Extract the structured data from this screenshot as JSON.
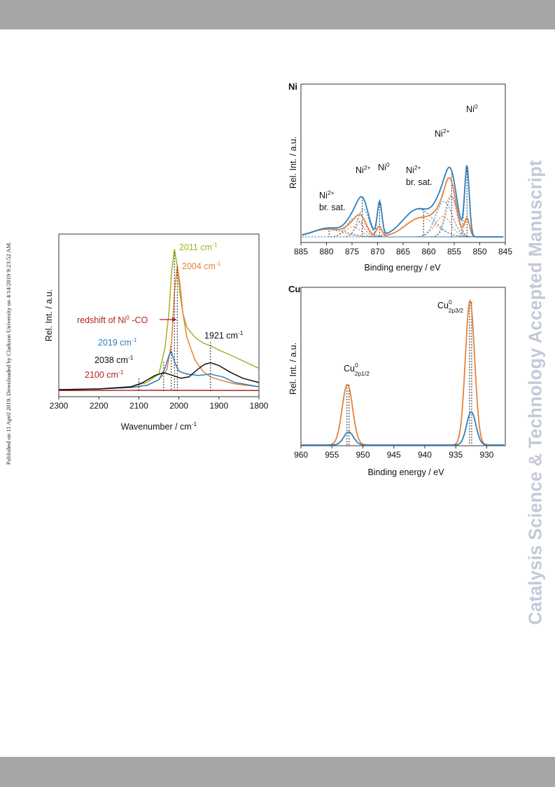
{
  "page": {
    "side_note": "Published on 11 April 2019. Downloaded by Clarkson University on 4/14/2019 9:23:52 AM.",
    "watermark": "Catalysis Science & Technology Accepted Manuscript"
  },
  "colors": {
    "blue": "#2e7fbf",
    "orange": "#e8803a",
    "olive": "#a6b21f",
    "black": "#111111",
    "red": "#b22222",
    "frame": "#333333"
  },
  "chart_data": [
    {
      "id": "ir",
      "type": "line",
      "xlabel": "Wavenumber / cm",
      "xlabel_sup": "-1",
      "ylabel": "Rel. Int. / a.u.",
      "xlim": [
        2300,
        1800
      ],
      "x_ticks": [
        2300,
        2200,
        2100,
        2000,
        1900,
        1800
      ],
      "grid": false,
      "series": [
        {
          "color": "olive",
          "x": [
            2300,
            2200,
            2120,
            2080,
            2050,
            2035,
            2025,
            2018,
            2011,
            2004,
            1998,
            1990,
            1980,
            1960,
            1940,
            1921,
            1900,
            1860,
            1800
          ],
          "y": [
            0.01,
            0.015,
            0.03,
            0.06,
            0.12,
            0.3,
            0.55,
            0.85,
            1.0,
            0.88,
            0.7,
            0.55,
            0.45,
            0.38,
            0.34,
            0.32,
            0.29,
            0.24,
            0.16
          ]
        },
        {
          "color": "orange",
          "x": [
            2300,
            2200,
            2120,
            2080,
            2050,
            2030,
            2018,
            2011,
            2004,
            1997,
            1990,
            1980,
            1960,
            1940,
            1921,
            1900,
            1860,
            1800
          ],
          "y": [
            0.01,
            0.015,
            0.025,
            0.04,
            0.08,
            0.15,
            0.35,
            0.7,
            0.88,
            0.75,
            0.55,
            0.38,
            0.22,
            0.14,
            0.1,
            0.08,
            0.05,
            0.03
          ]
        },
        {
          "color": "blue",
          "x": [
            2300,
            2200,
            2120,
            2080,
            2050,
            2035,
            2025,
            2019,
            2010,
            2000,
            1980,
            1950,
            1921,
            1890,
            1860,
            1800
          ],
          "y": [
            0.01,
            0.015,
            0.025,
            0.04,
            0.08,
            0.16,
            0.25,
            0.28,
            0.2,
            0.14,
            0.12,
            0.11,
            0.12,
            0.1,
            0.06,
            0.03
          ]
        },
        {
          "color": "black",
          "x": [
            2300,
            2200,
            2120,
            2090,
            2060,
            2038,
            2015,
            1995,
            1975,
            1950,
            1935,
            1921,
            1900,
            1870,
            1840,
            1800
          ],
          "y": [
            0.01,
            0.015,
            0.03,
            0.06,
            0.11,
            0.13,
            0.11,
            0.09,
            0.1,
            0.16,
            0.19,
            0.2,
            0.18,
            0.13,
            0.09,
            0.06
          ]
        },
        {
          "color": "red",
          "x": [
            2300,
            2110,
            2100,
            2090,
            1800
          ],
          "y": [
            0.004,
            0.005,
            0.007,
            0.005,
            0.004
          ]
        }
      ],
      "vlines": [
        2100,
        2038,
        2019,
        2011,
        2004,
        1921
      ],
      "labels": [
        {
          "text": "2011 cm",
          "sup": "-1",
          "color": "olive"
        },
        {
          "text": "2004 cm",
          "sup": "-1",
          "color": "orange"
        },
        {
          "text": "redshift of Ni",
          "sup": "0",
          "after": " -CO",
          "color": "red"
        },
        {
          "text": "1921 cm",
          "sup": "-1",
          "color": "black"
        },
        {
          "text": "2019 cm",
          "sup": "-1",
          "color": "blue"
        },
        {
          "text": "2038 cm",
          "sup": "-1",
          "color": "black"
        },
        {
          "text": "2100 cm",
          "sup": "-1",
          "color": "red"
        }
      ]
    },
    {
      "id": "ni",
      "type": "line",
      "title": "Ni",
      "xlabel": "Binding energy / eV",
      "ylabel": "Rel. Int. / a.u.",
      "xlim": [
        885,
        845
      ],
      "x_ticks": [
        885,
        880,
        875,
        870,
        865,
        860,
        855,
        850,
        845
      ],
      "grid": false,
      "blue_peaks": [
        [
          852.5,
          0.55,
          0.45
        ],
        [
          855.5,
          0.32,
          1.1
        ],
        [
          857.0,
          0.28,
          1.6
        ],
        [
          862.0,
          0.22,
          3.0
        ],
        [
          869.6,
          0.27,
          0.45
        ],
        [
          872.8,
          0.22,
          1.1
        ],
        [
          874.5,
          0.15,
          1.5
        ],
        [
          879.5,
          0.07,
          3.0
        ]
      ],
      "orange_peaks": [
        [
          852.5,
          0.14,
          0.5
        ],
        [
          855.7,
          0.33,
          1.1
        ],
        [
          857.2,
          0.16,
          1.6
        ],
        [
          861.5,
          0.15,
          3.0
        ],
        [
          869.7,
          0.08,
          0.5
        ],
        [
          873.2,
          0.12,
          1.1
        ],
        [
          874.8,
          0.08,
          1.5
        ],
        [
          880.0,
          0.06,
          3.0
        ]
      ],
      "vlines": [
        852.5,
        855.5,
        861.0,
        869.6,
        873.0,
        879.5
      ],
      "labels": [
        {
          "text": "Ni",
          "sup": "2+",
          "line2": "br. sat."
        },
        {
          "text": "Ni",
          "sup": "2+"
        },
        {
          "text": "Ni",
          "sup": "0"
        },
        {
          "text": "Ni",
          "sup": "2+",
          "line2": "br. sat."
        },
        {
          "text": "Ni",
          "sup": "2+"
        },
        {
          "text": "Ni",
          "sup": "0"
        }
      ]
    },
    {
      "id": "cu",
      "type": "line",
      "title": "Cu",
      "xlabel": "Binding energy / eV",
      "ylabel": "Rel. Int. / a.u.",
      "xlim": [
        960,
        927
      ],
      "x_ticks": [
        960,
        955,
        950,
        945,
        940,
        935,
        930
      ],
      "grid": false,
      "orange_peaks": [
        [
          952.5,
          0.42,
          0.85
        ],
        [
          932.7,
          1.0,
          0.75
        ]
      ],
      "blue_peaks": [
        [
          952.3,
          0.09,
          0.8
        ],
        [
          932.5,
          0.23,
          0.75
        ]
      ],
      "vlines": [
        952.4,
        932.6
      ],
      "labels": [
        {
          "text": "Cu",
          "sup": "0",
          "sub": "2p1/2"
        },
        {
          "text": "Cu",
          "sup": "0",
          "sub": "2p3/2"
        }
      ]
    }
  ]
}
